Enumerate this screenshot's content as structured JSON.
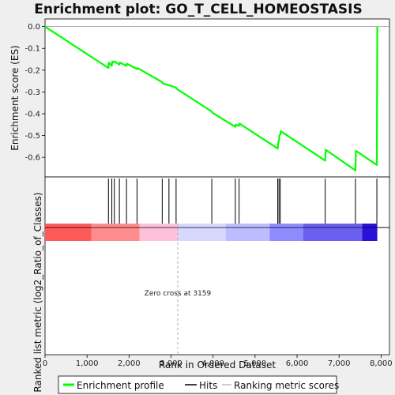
{
  "chart_data": {
    "type": "line",
    "title": "Enrichment plot: GO_T_CELL_HOMEOSTASIS",
    "top_panel": {
      "ylabel": "Enrichment score (ES)",
      "ylim": [
        -0.69,
        0.035
      ],
      "yticks": [
        "0.0",
        "-0.1",
        "-0.2",
        "-0.3",
        "-0.4",
        "-0.5",
        "-0.6"
      ],
      "ytick_values": [
        0.0,
        -0.1,
        -0.2,
        -0.3,
        -0.4,
        -0.5,
        -0.6
      ],
      "series": [
        {
          "name": "Enrichment profile",
          "color": "#00ff00",
          "x": [
            0,
            1510,
            1520,
            1590,
            1600,
            1650,
            1660,
            1770,
            1780,
            1940,
            1950,
            2190,
            2200,
            2790,
            2800,
            2950,
            2960,
            3120,
            3130,
            3970,
            3980,
            4530,
            4540,
            4620,
            4630,
            5540,
            5550,
            5570,
            5580,
            5600,
            5610,
            6670,
            6680,
            7390,
            7400,
            7900,
            7910
          ],
          "y": [
            0.0,
            -0.19,
            -0.165,
            -0.18,
            -0.16,
            -0.163,
            -0.16,
            -0.175,
            -0.165,
            -0.18,
            -0.17,
            -0.195,
            -0.19,
            -0.255,
            -0.26,
            -0.27,
            -0.27,
            -0.28,
            -0.285,
            -0.39,
            -0.395,
            -0.46,
            -0.45,
            -0.455,
            -0.445,
            -0.56,
            -0.535,
            -0.52,
            -0.5,
            -0.495,
            -0.48,
            -0.615,
            -0.565,
            -0.66,
            -0.57,
            -0.635,
            0.0
          ]
        }
      ],
      "zero_line": 0.0
    },
    "hits": {
      "name": "Hits",
      "x": [
        1510,
        1590,
        1650,
        1770,
        1940,
        2190,
        2790,
        2950,
        3120,
        3970,
        4530,
        4620,
        5540,
        5570,
        5600,
        6670,
        7390,
        7900
      ]
    },
    "bottom_panel": {
      "ylabel": "Ranked list metric (log2_Ratio_of_Classes)",
      "xlabel": "Rank in Ordered Dataset",
      "xlim": [
        0,
        8200
      ],
      "xticks": [
        "0",
        "1,000",
        "2,000",
        "3,000",
        "4,000",
        "5,000",
        "6,000",
        "7,000",
        "8,000"
      ],
      "xtick_values": [
        0,
        1000,
        2000,
        3000,
        4000,
        5000,
        6000,
        7000,
        8000
      ],
      "zero_cross_value": 3159,
      "zero_cross_label": "Zero cross at 3159",
      "gradient_segments": [
        {
          "from": 0,
          "to": 1100,
          "color": "#ff5a5a"
        },
        {
          "from": 1100,
          "to": 2250,
          "color": "#ff8c8c"
        },
        {
          "from": 2250,
          "to": 3159,
          "color": "#ffc0dc"
        },
        {
          "from": 3159,
          "to": 4300,
          "color": "#d8d8ff"
        },
        {
          "from": 4300,
          "to": 5350,
          "color": "#bcbcff"
        },
        {
          "from": 5350,
          "to": 6150,
          "color": "#8c8cff"
        },
        {
          "from": 6150,
          "to": 7550,
          "color": "#6a60f0"
        },
        {
          "from": 7550,
          "to": 7910,
          "color": "#2a10d8"
        }
      ]
    },
    "legend": {
      "placement": "bottom",
      "entries": [
        {
          "label": "Enrichment profile",
          "color": "#00ff00"
        },
        {
          "label": "Hits",
          "color": "#000000"
        },
        {
          "label": "Ranking metric scores",
          "color": "#c0c0c0"
        }
      ]
    }
  }
}
